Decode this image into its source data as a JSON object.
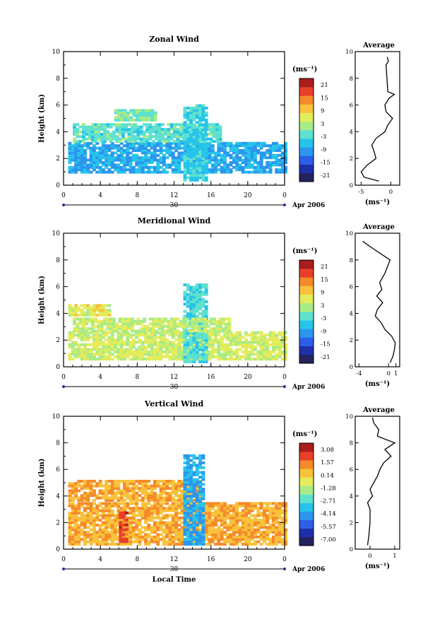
{
  "chart_data": [
    {
      "type": "heatmap",
      "title": "Zonal Wind",
      "ylabel": "Height (km)",
      "ylim": [
        0,
        10
      ],
      "xlim": [
        0,
        24
      ],
      "x_ticks": [
        "0",
        "4",
        "8",
        "12",
        "16",
        "20",
        "0"
      ],
      "y_ticks": [
        "0",
        "2",
        "4",
        "6",
        "8",
        "10"
      ],
      "date_tick": "30",
      "date_label": "Apr 2006",
      "colorbar": {
        "unit_label": "(ms⁻¹)",
        "ticks": [
          "21",
          "15",
          "9",
          "3",
          "-3",
          "-9",
          "-15",
          "-21"
        ],
        "range": [
          -24,
          24
        ]
      },
      "profile": {
        "title": "Average",
        "xlabel": "(ms⁻¹)",
        "x_ticks": [
          "-5",
          "0"
        ],
        "xlim": [
          -6,
          1.5
        ],
        "heights": [
          0.3,
          0.6,
          1.0,
          1.5,
          2.0,
          2.5,
          3.0,
          3.5,
          4.0,
          4.5,
          5.0,
          5.5,
          6.0,
          6.5,
          6.8,
          7.0,
          9.0,
          9.3,
          9.6
        ],
        "values": [
          -2.0,
          -4.5,
          -5.0,
          -4.0,
          -2.5,
          -2.8,
          -3.2,
          -2.5,
          -1.0,
          -0.5,
          0.3,
          -0.8,
          -1.0,
          -0.3,
          0.6,
          -0.5,
          -0.8,
          -0.4,
          -0.6
        ]
      },
      "regions": [
        {
          "x0": 0.5,
          "x1": 24,
          "y0": 0.9,
          "y1": 3.1,
          "value": -8
        },
        {
          "x0": 1.0,
          "x1": 17,
          "y0": 3.2,
          "y1": 4.6,
          "value": -2
        },
        {
          "x0": 13.0,
          "x1": 15.5,
          "y0": 0.3,
          "y1": 6.0,
          "value": -5
        },
        {
          "x0": 5.5,
          "x1": 10,
          "y0": 4.8,
          "y1": 5.6,
          "value": 0
        }
      ]
    },
    {
      "type": "heatmap",
      "title": "Meridional Wind",
      "ylabel": "Height (km)",
      "ylim": [
        0,
        10
      ],
      "xlim": [
        0,
        24
      ],
      "x_ticks": [
        "0",
        "4",
        "8",
        "12",
        "16",
        "20",
        "0"
      ],
      "y_ticks": [
        "0",
        "2",
        "4",
        "6",
        "8",
        "10"
      ],
      "date_tick": "30",
      "date_label": "Apr 2006",
      "colorbar": {
        "unit_label": "(ms⁻¹)",
        "ticks": [
          "21",
          "15",
          "9",
          "3",
          "-3",
          "-9",
          "-15",
          "-21"
        ],
        "range": [
          -24,
          24
        ]
      },
      "profile": {
        "title": "Average",
        "xlabel": "(ms⁻¹)",
        "x_ticks": [
          "-4",
          "0",
          "1"
        ],
        "xlim": [
          -4.5,
          1.5
        ],
        "heights": [
          0.3,
          0.8,
          1.3,
          1.8,
          2.3,
          2.8,
          3.3,
          3.8,
          4.3,
          4.8,
          5.3,
          5.8,
          6.3,
          7.0,
          8.0,
          9.0,
          9.4
        ],
        "values": [
          0.2,
          0.6,
          0.8,
          0.9,
          0.4,
          -0.5,
          -1.0,
          -1.8,
          -1.5,
          -0.8,
          -1.6,
          -0.9,
          -1.2,
          -0.5,
          0.2,
          -2.5,
          -3.5
        ]
      },
      "regions": [
        {
          "x0": 0.5,
          "x1": 24,
          "y0": 0.5,
          "y1": 2.5,
          "value": 5
        },
        {
          "x0": 13.0,
          "x1": 15.5,
          "y0": 0.3,
          "y1": 6.2,
          "value": -3
        },
        {
          "x0": 1.0,
          "x1": 18,
          "y0": 2.6,
          "y1": 3.6,
          "value": 4
        },
        {
          "x0": 0.5,
          "x1": 5,
          "y0": 3.8,
          "y1": 4.6,
          "value": 6
        }
      ]
    },
    {
      "type": "heatmap",
      "title": "Vertical Wind",
      "ylabel": "Height (km)",
      "xlabel": "Local Time",
      "ylim": [
        0,
        10
      ],
      "xlim": [
        0,
        24
      ],
      "x_ticks": [
        "0",
        "4",
        "8",
        "12",
        "16",
        "20",
        "0"
      ],
      "y_ticks": [
        "0",
        "2",
        "4",
        "6",
        "8",
        "10"
      ],
      "date_tick": "30",
      "date_label": "Apr 2006",
      "colorbar": {
        "unit_label": "(ms⁻¹)",
        "ticks": [
          "3.08",
          "1.57",
          "0.14",
          "-1.28",
          "-2.71",
          "-4.14",
          "-5.57",
          "-7.00"
        ],
        "range": [
          -7.7,
          3.8
        ]
      },
      "profile": {
        "title": "Average",
        "xlabel": "(ms⁻¹)",
        "x_ticks": [
          "0",
          "1"
        ],
        "xlim": [
          -0.6,
          1.2
        ],
        "heights": [
          0.3,
          1.0,
          2.0,
          3.0,
          3.5,
          4.0,
          4.5,
          5.0,
          5.5,
          6.0,
          6.5,
          7.0,
          7.5,
          8.0,
          8.5,
          9.0,
          9.5,
          9.9
        ],
        "values": [
          -0.1,
          -0.05,
          0.0,
          0.0,
          -0.1,
          0.1,
          0.0,
          0.15,
          0.3,
          0.4,
          0.55,
          0.85,
          0.6,
          1.0,
          0.3,
          0.35,
          0.15,
          0.1
        ]
      },
      "regions": [
        {
          "x0": 0.5,
          "x1": 24,
          "y0": 0.3,
          "y1": 3.5,
          "value": 0.8
        },
        {
          "x0": 0.5,
          "x1": 15,
          "y0": 3.6,
          "y1": 5.2,
          "value": 0.9
        },
        {
          "x0": 13.0,
          "x1": 15.0,
          "y0": 0.3,
          "y1": 7.0,
          "value": -4.0
        },
        {
          "x0": 6.0,
          "x1": 6.8,
          "y0": 0.5,
          "y1": 2.8,
          "value": 2.2
        }
      ]
    }
  ]
}
